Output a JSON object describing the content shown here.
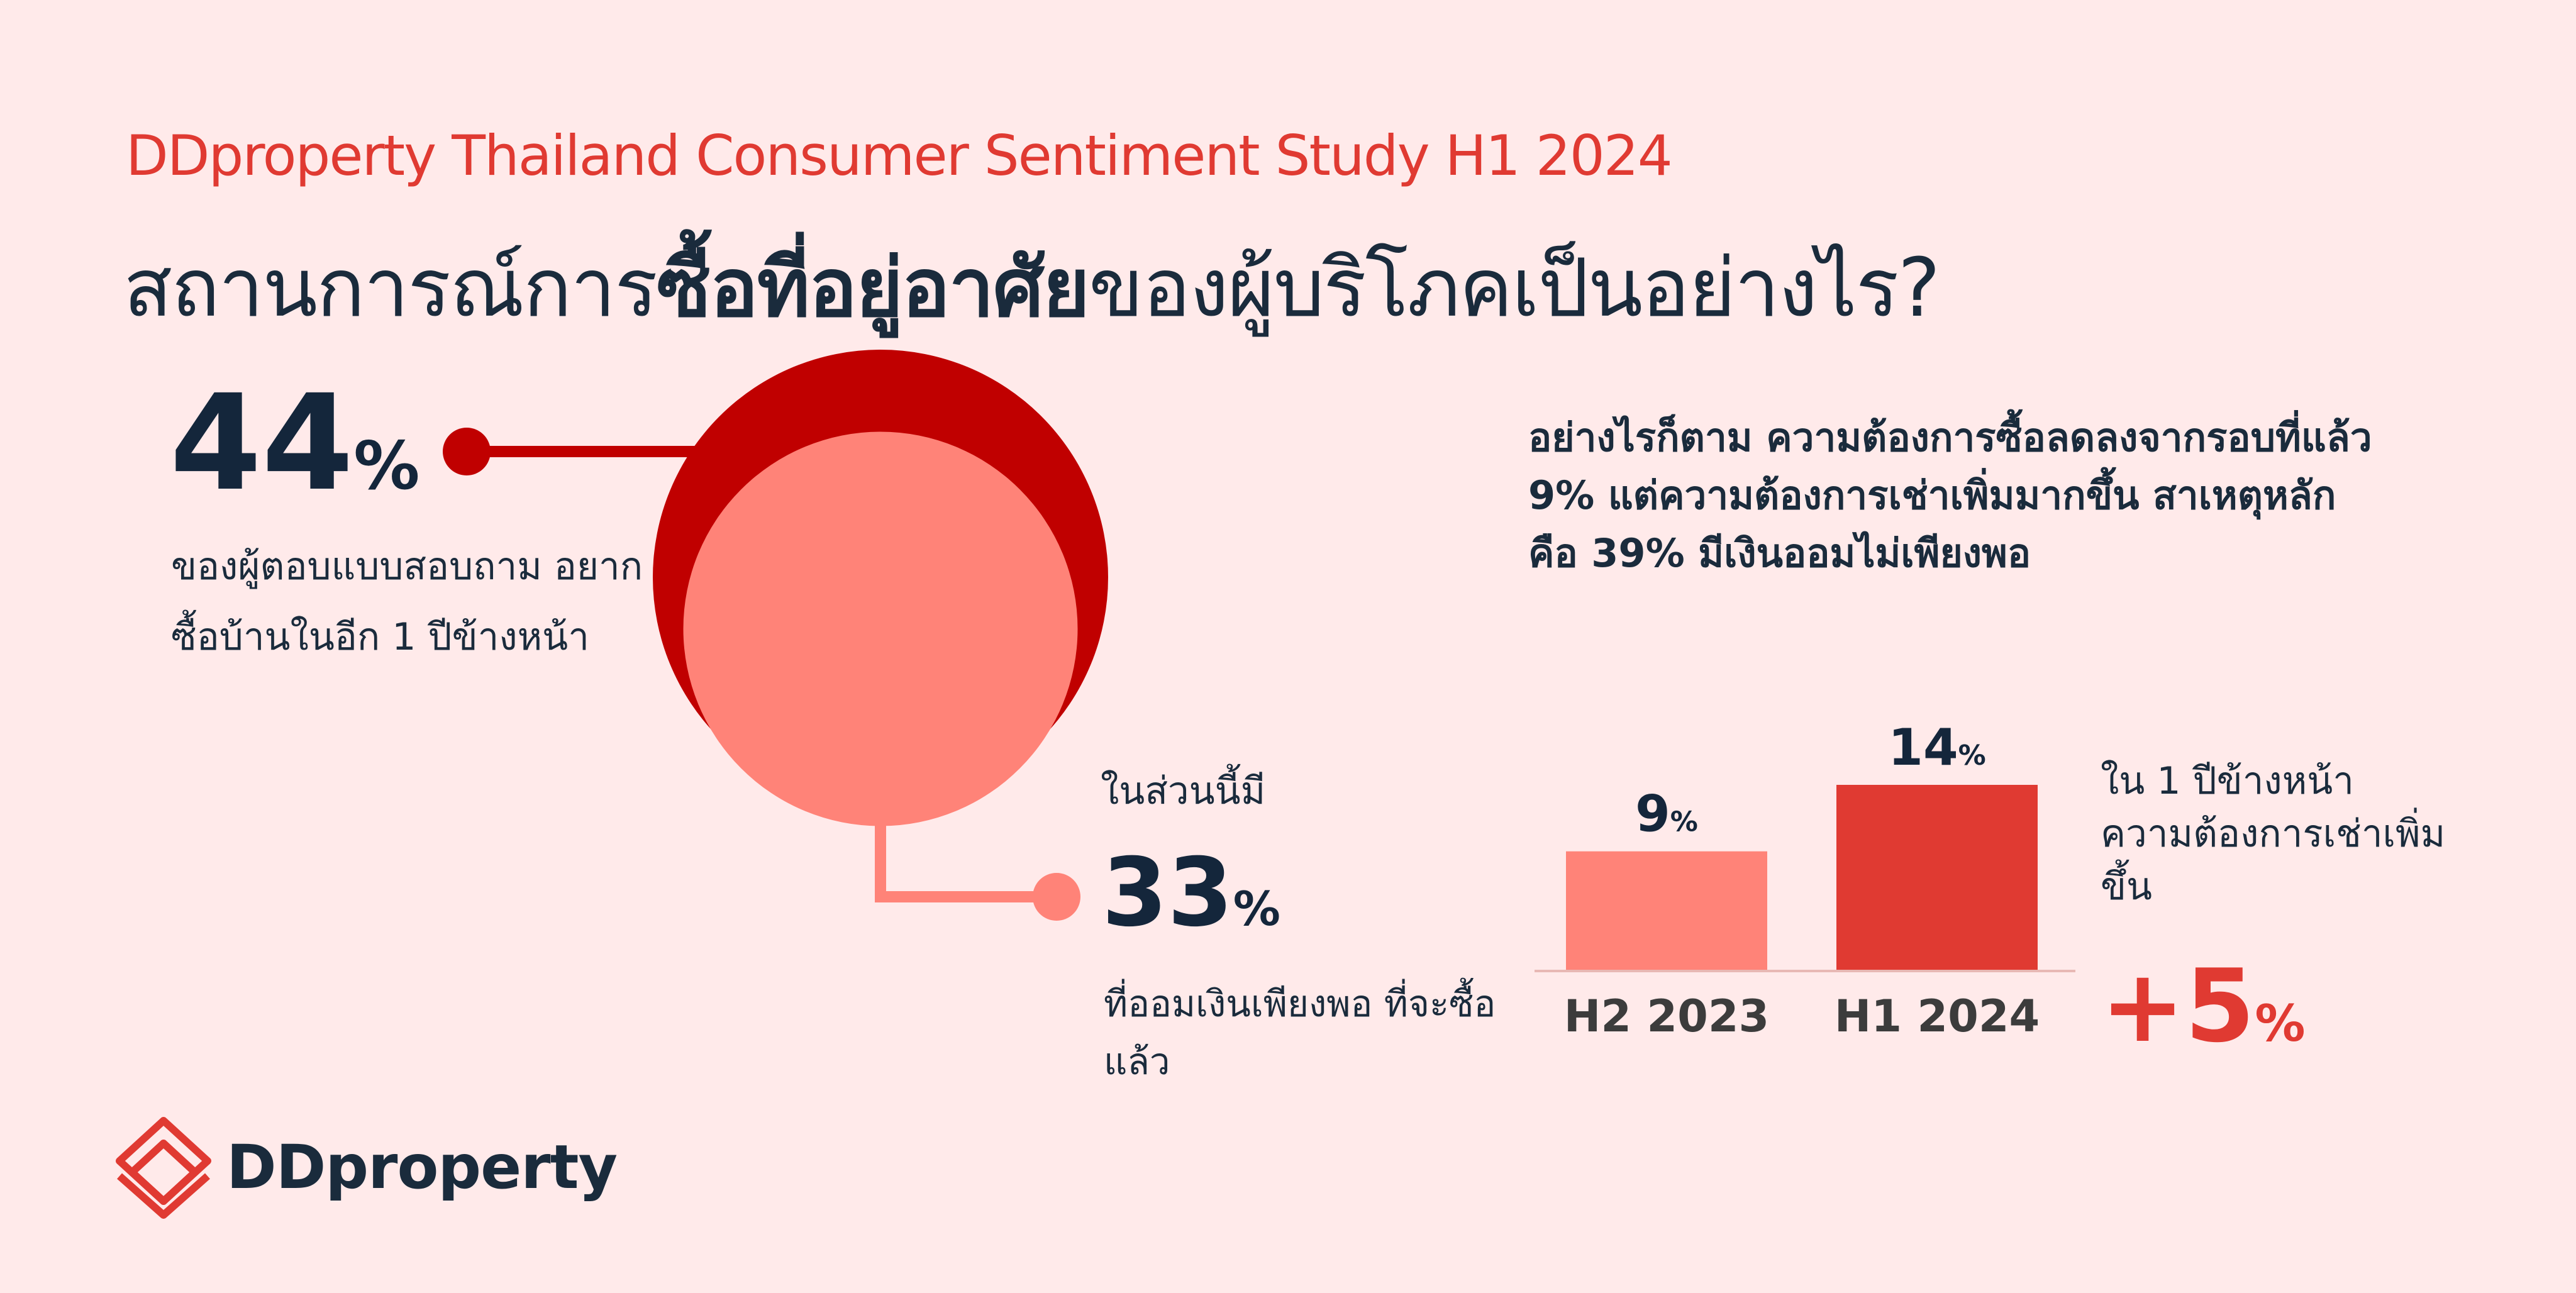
{
  "header": {
    "kicker": "DDproperty Thailand Consumer Sentiment Study H1 2024",
    "headline_prefix": "สถานการณ์การ",
    "headline_bold": "ซื้อที่อยู่อาศัย",
    "headline_suffix": "ของผู้บริโภคเป็นอย่างไร?"
  },
  "stat_buy": {
    "value": "44",
    "unit": "%",
    "description": "ของผู้ตอบแบบสอบถาม อยากซื้อบ้านในอีก 1 ปีข้างหน้า"
  },
  "stat_saving": {
    "intro": "ในส่วนนี้มี",
    "value": "33",
    "unit": "%",
    "description": "ที่ออมเงินเพียงพอ ที่จะซื้อแล้ว"
  },
  "insight_text": "อย่างไรก็ตาม ความต้องการซื้อลดลงจากรอบที่แล้ว 9% แต่ความต้องการเช่าเพิ่มมากขึ้น สาเหตุหลักคือ 39% มีเงินออมไม่เพียงพอ",
  "rent_note": "ใน 1 ปีข้างหน้า ความต้องการเช่าเพิ่มขึ้น",
  "rent_change": {
    "value": "+5",
    "unit": "%"
  },
  "brand": {
    "name": "DDproperty"
  },
  "colors": {
    "accent_red": "#e03a32",
    "dark_red": "#c00000",
    "salmon": "#ff8378",
    "navy": "#14263b",
    "background": "#ffeaea"
  },
  "chart_data": [
    {
      "type": "pie",
      "style": "nested-circles",
      "values": [
        44,
        33
      ],
      "labels": [
        "อยากซื้อบ้านในอีก 1 ปีข้างหน้า",
        "ออมเงินเพียงพอที่จะซื้อแล้ว"
      ],
      "colors": [
        "#c00000",
        "#ff8378"
      ]
    },
    {
      "type": "bar",
      "categories": [
        "H2 2023",
        "H1 2024"
      ],
      "values": [
        9,
        14
      ],
      "unit": "%",
      "colors": [
        "#ff8378",
        "#e03a32"
      ],
      "ylim": [
        0,
        14
      ]
    }
  ]
}
